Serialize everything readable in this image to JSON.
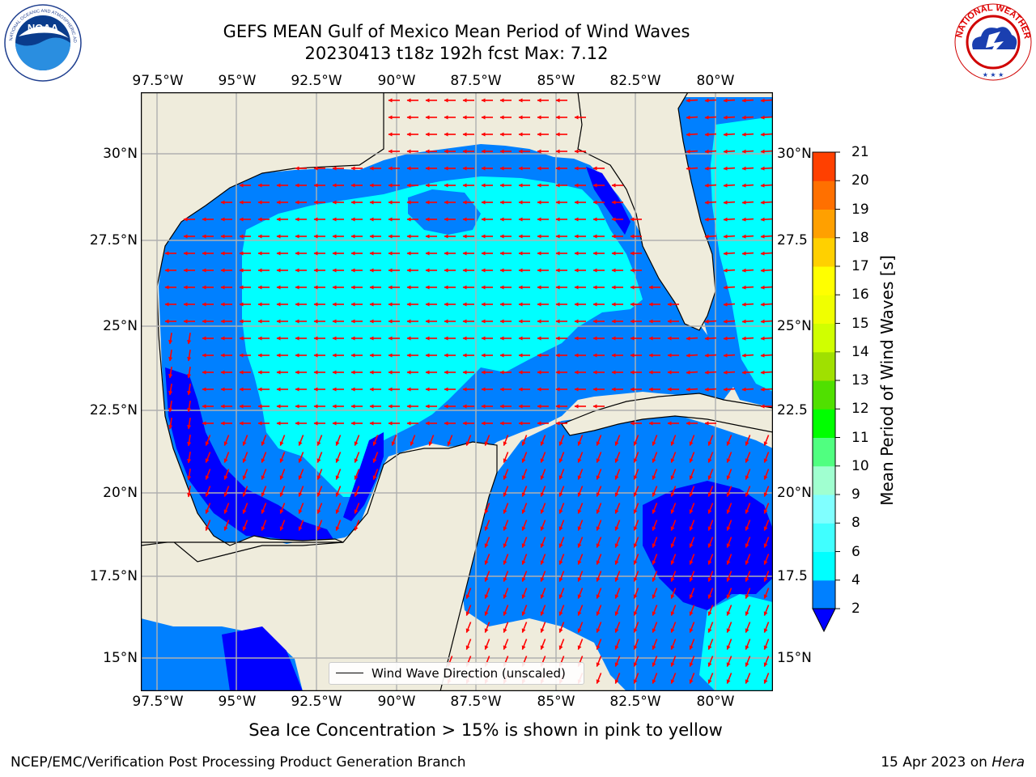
{
  "title": {
    "line1": "GEFS MEAN Gulf of Mexico Mean Period of Wind Waves",
    "line2": "20230413 t18z 192h fcst   Max: 7.12"
  },
  "map": {
    "lon_labels": [
      "97.5°W",
      "95°W",
      "92.5°W",
      "90°W",
      "87.5°W",
      "85°W",
      "82.5°W",
      "80°W"
    ],
    "lat_labels_left": [
      "30°N",
      "27.5°N",
      "25°N",
      "22.5°N",
      "20°N",
      "17.5°N",
      "15°N"
    ],
    "lat_labels_right": [
      "30°N",
      "27.5",
      "25°N",
      "22.5",
      "20°N",
      "17.5",
      "15°N"
    ],
    "extent": {
      "lon_min": -98,
      "lon_max": -78.2,
      "lat_min": 14,
      "lat_max": 31.8
    },
    "colors": {
      "land": "#efecdc",
      "grid": "#b0b0b0",
      "arrows": "#ff0000",
      "coast": "#000000"
    },
    "legend": "Wind Wave Direction (unscaled)"
  },
  "colorbar": {
    "label": "Mean Period of Wind Waves [s]",
    "ticks": [
      "2",
      "4",
      "6",
      "8",
      "9",
      "10",
      "11",
      "12",
      "13",
      "14",
      "15",
      "16",
      "17",
      "18",
      "19",
      "20",
      "21"
    ],
    "colors": [
      "#0000ff",
      "#0080ff",
      "#00ffff",
      "#40ffff",
      "#80ffff",
      "#a0ffd0",
      "#50ff80",
      "#00ff00",
      "#50e000",
      "#a0e000",
      "#d0ff00",
      "#f0ff00",
      "#ffff00",
      "#ffd000",
      "#ffa000",
      "#ff7000",
      "#ff4000",
      "#ff0000"
    ]
  },
  "subtitle": "Sea Ice Concentration > 15% is shown in pink to yellow",
  "footer": {
    "left": "NCEP/EMC/Verification Post Processing Product Generation Branch",
    "right_prefix": "15 Apr 2023 on ",
    "right_host": "Hera"
  },
  "logos": {
    "noaa_text": "NOAA",
    "noaa_ring": "NATIONAL OCEANIC AND ATMOSPHERIC ADMINISTRATION · U.S. DEPARTMENT OF COMMERCE",
    "nws_ring": "NATIONAL WEATHER SERVICE"
  }
}
